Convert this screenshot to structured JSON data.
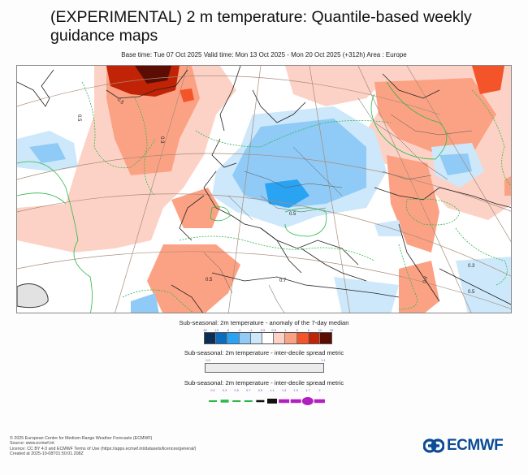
{
  "header": {
    "title": "(EXPERIMENTAL) 2 m temperature: Quantile-based weekly guidance maps",
    "subtitle": "Base time: Tue 07 Oct 2025 Valid time: Mon 13 Oct 2025 - Mon 20 Oct 2025 (+312h) Area : Europe"
  },
  "map": {
    "area": "Europe",
    "contour_labels": [
      "0.5",
      "0.5",
      "0.3",
      "0.5",
      "0.5",
      "0.7",
      "0.3",
      "0.5",
      "0.3"
    ]
  },
  "legends": {
    "anomaly": {
      "title": "Sub-seasonal: 2m temperature - anomaly of the 7-day median",
      "ticks": [
        "-30",
        "-10",
        "-6",
        "-3",
        "-1",
        "-0.5",
        "0.5",
        "1",
        "3",
        "6",
        "10",
        "30"
      ],
      "colors": [
        "#0a2e55",
        "#0b6bbd",
        "#2aa3f2",
        "#8fcbf6",
        "#cde8fb",
        "#ffffff",
        "#fdd2c6",
        "#fca284",
        "#f4542a",
        "#c02305",
        "#5b0d04"
      ]
    },
    "spread_fill": {
      "title": "Sub-seasonal: 2m temperature - inter-decile spread metric",
      "ticks": [
        "0.9",
        "1.1"
      ],
      "color": "#ececec"
    },
    "spread_lines": {
      "title": "Sub-seasonal: 2m temperature - inter-decile spread metric",
      "ticks": [
        "0.2",
        "0.3",
        "0.5",
        "0.7",
        "0.9",
        "1.1",
        "1.3",
        "1.5",
        "1.7",
        "2"
      ],
      "styles": [
        {
          "color": "#2db84a",
          "style": "dashed-thin"
        },
        {
          "color": "#2db84a",
          "style": "dashed-thick"
        },
        {
          "color": "#2db84a",
          "style": "dashed-thin"
        },
        {
          "color": "#2db84a",
          "style": "dashed-thin"
        },
        {
          "color": "#111111",
          "style": "solid-thin"
        },
        {
          "color": "#111111",
          "style": "solid-thick"
        },
        {
          "color": "#b01fc0",
          "style": "solid-medium"
        },
        {
          "color": "#b01fc0",
          "style": "solid-medium"
        },
        {
          "color": "#b01fc0",
          "style": "solid-blob"
        },
        {
          "color": "#b01fc0",
          "style": "solid-medium"
        }
      ]
    }
  },
  "footer": {
    "lines": [
      "© 2025 European Centre for Medium-Range Weather Forecasts (ECMWF)",
      "Source: www.ecmwf.int",
      "Licence: CC BY 4.0 and ECMWF Terms of Use (https://apps.ecmwf.int/datasets/licences/general/)",
      "Created at 2025-10-08T01:50:01.208Z"
    ],
    "logo_text": "ECMWF",
    "logo_color": "#0c4c96"
  }
}
